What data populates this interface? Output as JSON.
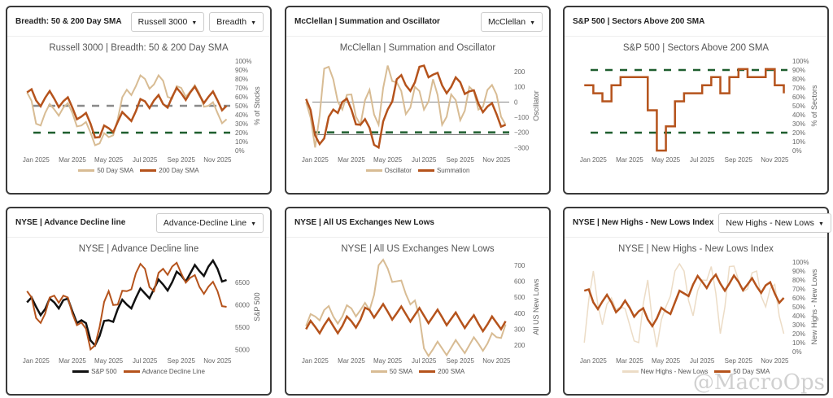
{
  "panels": [
    {
      "header": "Breadth: 50 & 200 Day SMA",
      "dropdowns": [
        "Russell 3000",
        "Breadth"
      ]
    },
    {
      "header": "McClellan | Summation and Oscillator",
      "dropdowns": [
        "McClellan"
      ]
    },
    {
      "header": "S&P 500 | Sectors Above 200 SMA",
      "dropdowns": []
    },
    {
      "header": "NYSE | Advance Decline line",
      "dropdowns": [
        "Advance-Decline Line"
      ]
    },
    {
      "header": "NYSE | All US Exchanges New Lows",
      "dropdowns": []
    },
    {
      "header": "NYSE | New Highs - New Lows Index",
      "dropdowns": [
        "New Highs - New Lows"
      ]
    }
  ],
  "watermark": "@MacroOps",
  "chart_data": [
    {
      "type": "line",
      "title": "Russell 3000 | Breadth: 50 & 200 Day SMA",
      "ylabel": "% of Stocks",
      "ylim": [
        0,
        100
      ],
      "x_start": -0.5,
      "x_step": 0.5,
      "xlim": [
        -0.6,
        10.7
      ],
      "xticks": [
        {
          "x": 0,
          "label": "Jan 2025"
        },
        {
          "x": 2,
          "label": "Mar 2025"
        },
        {
          "x": 4,
          "label": "May 2025"
        },
        {
          "x": 6,
          "label": "Jul 2025"
        },
        {
          "x": 8,
          "label": "Sep 2025"
        },
        {
          "x": 10,
          "label": "Nov 2025"
        }
      ],
      "yticks": [
        {
          "y": 0,
          "label": "0%"
        },
        {
          "y": 10,
          "label": "10%"
        },
        {
          "y": 20,
          "label": "20%"
        },
        {
          "y": 30,
          "label": "30%"
        },
        {
          "y": 40,
          "label": "40%"
        },
        {
          "y": 50,
          "label": "50%"
        },
        {
          "y": 60,
          "label": "60%"
        },
        {
          "y": 70,
          "label": "70%"
        },
        {
          "y": 80,
          "label": "80%"
        },
        {
          "y": 90,
          "label": "90%"
        },
        {
          "y": 100,
          "label": "100%"
        }
      ],
      "ref_lines": [
        {
          "y": 50,
          "color": "#8a8a8a"
        },
        {
          "y": 20,
          "color": "#1e5e2e"
        }
      ],
      "series": [
        {
          "name": "50 Day SMA",
          "color": "#d8bc94",
          "width": 2,
          "values": [
            65,
            30,
            42,
            46,
            48,
            42,
            28,
            20,
            8,
            15,
            35,
            68,
            72,
            80,
            74,
            78,
            58,
            70,
            66,
            64,
            50,
            42,
            35
          ]
        },
        {
          "name": "200 Day SMA",
          "color": "#b5531c",
          "width": 2.5,
          "values": [
            65,
            56,
            59,
            58,
            55,
            48,
            38,
            30,
            15,
            25,
            32,
            38,
            44,
            55,
            56,
            52,
            60,
            64,
            65,
            62,
            60,
            56,
            50
          ]
        }
      ]
    },
    {
      "type": "line",
      "title": "McClellan | Summation and Oscillator",
      "ylabel": "Oscillator",
      "ylim": [
        -320,
        270
      ],
      "x_start": -0.5,
      "x_step": 0.5,
      "xlim": [
        -0.6,
        10.7
      ],
      "xticks": [
        {
          "x": 0,
          "label": "Jan 2025"
        },
        {
          "x": 2,
          "label": "Mar 2025"
        },
        {
          "x": 4,
          "label": "May 2025"
        },
        {
          "x": 6,
          "label": "Jul 2025"
        },
        {
          "x": 8,
          "label": "Sep 2025"
        },
        {
          "x": 10,
          "label": "Nov 2025"
        }
      ],
      "yticks": [
        {
          "y": -300,
          "label": "−300"
        },
        {
          "y": -200,
          "label": "−200"
        },
        {
          "y": -100,
          "label": "−100"
        },
        {
          "y": 0,
          "label": "0"
        },
        {
          "y": 100,
          "label": "100"
        },
        {
          "y": 200,
          "label": "200"
        }
      ],
      "ref_lines": [
        {
          "y": 0,
          "color": "#8a8a8a",
          "thin": true
        },
        {
          "y": -200,
          "color": "#1e5e2e"
        },
        {
          "y": -215,
          "color": "#666",
          "thin": true
        }
      ],
      "series": [
        {
          "name": "Oscillator",
          "color": "#d8bc94",
          "width": 2,
          "values": [
            0,
            -300,
            220,
            150,
            -50,
            50,
            -150,
            80,
            -150,
            240,
            130,
            -80,
            100,
            -50,
            150,
            -150,
            50,
            -120,
            100,
            -50,
            80,
            50,
            -150
          ]
        },
        {
          "name": "Summation",
          "color": "#b5531c",
          "width": 2.5,
          "values": [
            20,
            -220,
            -240,
            -50,
            0,
            -50,
            -150,
            -170,
            -300,
            -50,
            150,
            110,
            130,
            240,
            180,
            110,
            100,
            130,
            70,
            -10,
            -30,
            -80,
            -150
          ]
        }
      ]
    },
    {
      "type": "line",
      "title": "S&P 500 | Sectors Above 200 SMA",
      "ylabel": "% of Sectors",
      "ylim": [
        0,
        100
      ],
      "x_start": -0.5,
      "x_step": 0.5,
      "xlim": [
        -0.6,
        10.7
      ],
      "step": true,
      "xticks": [
        {
          "x": 0,
          "label": "Jan 2025"
        },
        {
          "x": 2,
          "label": "Mar 2025"
        },
        {
          "x": 4,
          "label": "May 2025"
        },
        {
          "x": 6,
          "label": "Jul 2025"
        },
        {
          "x": 8,
          "label": "Sep 2025"
        },
        {
          "x": 10,
          "label": "Nov 2025"
        }
      ],
      "yticks": [
        {
          "y": 0,
          "label": "0%"
        },
        {
          "y": 10,
          "label": "10%"
        },
        {
          "y": 20,
          "label": "20%"
        },
        {
          "y": 30,
          "label": "30%"
        },
        {
          "y": 40,
          "label": "40%"
        },
        {
          "y": 50,
          "label": "50%"
        },
        {
          "y": 60,
          "label": "60%"
        },
        {
          "y": 70,
          "label": "70%"
        },
        {
          "y": 80,
          "label": "80%"
        },
        {
          "y": 90,
          "label": "90%"
        },
        {
          "y": 100,
          "label": "100%"
        }
      ],
      "ref_lines": [
        {
          "y": 90,
          "color": "#1e5e2e"
        },
        {
          "y": 20,
          "color": "#1e5e2e"
        }
      ],
      "series": [
        {
          "name": "Sectors Above 200 SMA",
          "color": "#b5531c",
          "width": 2.5,
          "values": [
            73,
            64,
            55,
            73,
            82,
            82,
            82,
            45,
            0,
            27,
            55,
            64,
            64,
            73,
            82,
            64,
            82,
            91,
            82,
            82,
            91,
            73,
            64
          ]
        }
      ],
      "hide_legend": true
    },
    {
      "type": "line",
      "title": "NYSE | Advance Decline line",
      "ylabel": "S&P 500",
      "ylim": [
        4950,
        6950
      ],
      "x_start": -0.5,
      "x_step": 0.5,
      "xlim": [
        -0.6,
        10.7
      ],
      "xticks": [
        {
          "x": 0,
          "label": "Jan 2025"
        },
        {
          "x": 2,
          "label": "Mar 2025"
        },
        {
          "x": 4,
          "label": "May 2025"
        },
        {
          "x": 6,
          "label": "Jul 2025"
        },
        {
          "x": 8,
          "label": "Sep 2025"
        },
        {
          "x": 10,
          "label": "Nov 2025"
        }
      ],
      "yticks": [
        {
          "y": 5000,
          "label": "5000"
        },
        {
          "y": 5500,
          "label": "5500"
        },
        {
          "y": 6000,
          "label": "6000"
        },
        {
          "y": 6500,
          "label": "6500"
        }
      ],
      "ref_lines": [],
      "series": [
        {
          "name": "S&P 500",
          "color": "#111111",
          "width": 2.5,
          "values": [
            6050,
            5950,
            5900,
            6050,
            6100,
            5850,
            5650,
            5200,
            5300,
            5650,
            5900,
            6000,
            6150,
            6250,
            6350,
            6450,
            6500,
            6650,
            6700,
            6750,
            6850,
            6800,
            6550
          ]
        },
        {
          "name": "Advance Decline Line",
          "color": "#b5531c",
          "width": 2,
          "values": [
            6300,
            5700,
            5800,
            6200,
            6200,
            5800,
            5600,
            5000,
            5500,
            6300,
            6000,
            6300,
            6700,
            6800,
            6300,
            6800,
            6850,
            6700,
            6600,
            6400,
            6400,
            6300,
            5950
          ]
        }
      ]
    },
    {
      "type": "line",
      "title": "NYSE | All US Exchanges New Lows",
      "ylabel": "All US New Lows",
      "ylim": [
        160,
        720
      ],
      "x_start": -0.5,
      "x_step": 0.5,
      "xlim": [
        -0.6,
        10.7
      ],
      "xticks": [
        {
          "x": 0,
          "label": "Jan 2025"
        },
        {
          "x": 2,
          "label": "Mar 2025"
        },
        {
          "x": 4,
          "label": "May 2025"
        },
        {
          "x": 6,
          "label": "Jul 2025"
        },
        {
          "x": 8,
          "label": "Sep 2025"
        },
        {
          "x": 10,
          "label": "Nov 2025"
        }
      ],
      "yticks": [
        {
          "y": 200,
          "label": "200"
        },
        {
          "y": 300,
          "label": "300"
        },
        {
          "y": 400,
          "label": "400"
        },
        {
          "y": 500,
          "label": "500"
        },
        {
          "y": 600,
          "label": "600"
        },
        {
          "y": 700,
          "label": "700"
        }
      ],
      "ref_lines": [],
      "series": [
        {
          "name": "50 SMA",
          "color": "#d8bc94",
          "width": 2,
          "values": [
            320,
            380,
            420,
            380,
            380,
            430,
            420,
            420,
            700,
            680,
            600,
            520,
            480,
            180,
            175,
            180,
            185,
            190,
            200,
            210,
            210,
            250,
            330
          ]
        },
        {
          "name": "200 SMA",
          "color": "#b5531c",
          "width": 2.5,
          "values": [
            300,
            315,
            325,
            320,
            320,
            350,
            360,
            420,
            415,
            410,
            400,
            395,
            390,
            385,
            380,
            375,
            365,
            355,
            350,
            335,
            330,
            340,
            350
          ]
        }
      ]
    },
    {
      "type": "line",
      "title": "NYSE | New Highs - New Lows Index",
      "ylabel": "New Highs - New Lows",
      "ylim": [
        0,
        100
      ],
      "x_start": -0.5,
      "x_step": 0.5,
      "xlim": [
        -0.6,
        10.7
      ],
      "xticks": [
        {
          "x": 0,
          "label": "Jan 2025"
        },
        {
          "x": 2,
          "label": "Mar 2025"
        },
        {
          "x": 4,
          "label": "May 2025"
        },
        {
          "x": 6,
          "label": "Jul 2025"
        },
        {
          "x": 8,
          "label": "Sep 2025"
        },
        {
          "x": 10,
          "label": "Nov 2025"
        }
      ],
      "yticks": [
        {
          "y": 0,
          "label": "0%"
        },
        {
          "y": 10,
          "label": "10%"
        },
        {
          "y": 20,
          "label": "20%"
        },
        {
          "y": 30,
          "label": "30%"
        },
        {
          "y": 40,
          "label": "40%"
        },
        {
          "y": 50,
          "label": "50%"
        },
        {
          "y": 60,
          "label": "60%"
        },
        {
          "y": 70,
          "label": "70%"
        },
        {
          "y": 80,
          "label": "80%"
        },
        {
          "y": 90,
          "label": "90%"
        },
        {
          "y": 100,
          "label": "100%"
        }
      ],
      "ref_lines": [],
      "series": [
        {
          "name": "New Highs - New Lows",
          "color": "#ecdcc6",
          "width": 1.5,
          "values": [
            10,
            90,
            30,
            60,
            50,
            30,
            10,
            80,
            5,
            50,
            90,
            90,
            40,
            80,
            95,
            20,
            95,
            80,
            70,
            90,
            50,
            75,
            20
          ]
        },
        {
          "name": "50 Day SMA",
          "color": "#b5531c",
          "width": 2.5,
          "values": [
            68,
            55,
            56,
            55,
            49,
            49,
            45,
            36,
            37,
            45,
            55,
            65,
            75,
            78,
            80,
            76,
            76,
            78,
            75,
            73,
            74,
            65,
            60
          ]
        }
      ]
    }
  ]
}
